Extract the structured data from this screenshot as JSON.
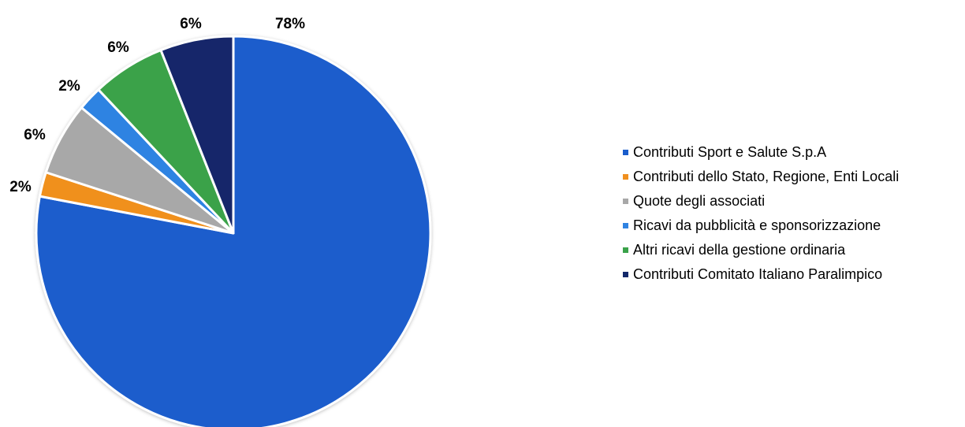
{
  "chart_data": {
    "type": "pie",
    "title": "",
    "start_angle_deg": 0,
    "direction": "clockwise",
    "legend_position": "right",
    "slices": [
      {
        "label": "Contributi Sport e Salute S.p.A",
        "value": 78,
        "value_label": "78%",
        "color": "#1a5dcc"
      },
      {
        "label": "Contributi dello Stato, Regione, Enti Locali",
        "value": 2,
        "value_label": "2%",
        "color": "#f0901f"
      },
      {
        "label": "Quote degli associati",
        "value": 6,
        "value_label": "6%",
        "color": "#a8a8a8"
      },
      {
        "label": "Ricavi da pubblicità e sponsorizzazione",
        "value": 2,
        "value_label": "2%",
        "color": "#2f83e2"
      },
      {
        "label": "Altri ricavi della gestione ordinaria",
        "value": 6,
        "value_label": "6%",
        "color": "#3aa24a"
      },
      {
        "label": "Contributi Comitato Italiano Paralimpico",
        "value": 6,
        "value_label": "6%",
        "color": "#13286a"
      }
    ]
  }
}
